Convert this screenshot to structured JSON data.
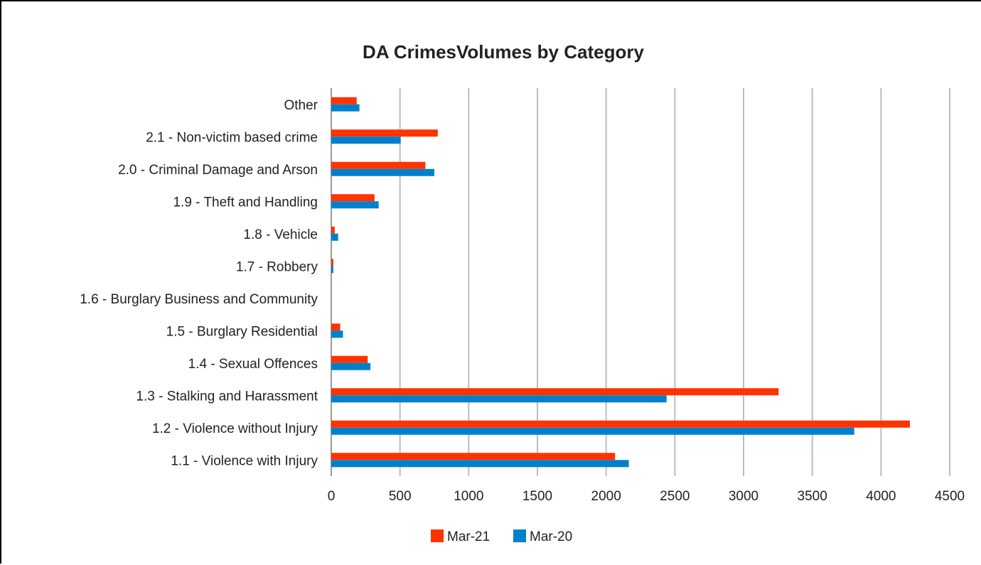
{
  "chart_data": {
    "type": "bar",
    "orientation": "horizontal",
    "title": "DA CrimesVolumes by Category",
    "categories": [
      "1.1 - Violence with Injury",
      "1.2 - Violence without Injury",
      "1.3 - Stalking and Harassment",
      "1.4 - Sexual Offences",
      "1.5 - Burglary Residential",
      "1.6 - Burglary Business and Community",
      "1.7 - Robbery",
      "1.8 - Vehicle",
      "1.9 - Theft and Handling",
      "2.0 - Criminal Damage and Arson",
      "2.1 - Non-victim based crime",
      "Other"
    ],
    "series": [
      {
        "name": "Mar-21",
        "color": "#ff3300",
        "values": [
          2065,
          4210,
          3255,
          265,
          65,
          0,
          15,
          25,
          315,
          685,
          775,
          185
        ]
      },
      {
        "name": "Mar-20",
        "color": "#0080cc",
        "values": [
          2165,
          3805,
          2440,
          285,
          85,
          0,
          15,
          50,
          345,
          750,
          505,
          205
        ]
      }
    ],
    "xlim": [
      0,
      4500
    ],
    "xticks": [
      0,
      500,
      1000,
      1500,
      2000,
      2500,
      3000,
      3500,
      4000,
      4500
    ],
    "grid": true,
    "legend_position": "bottom"
  }
}
